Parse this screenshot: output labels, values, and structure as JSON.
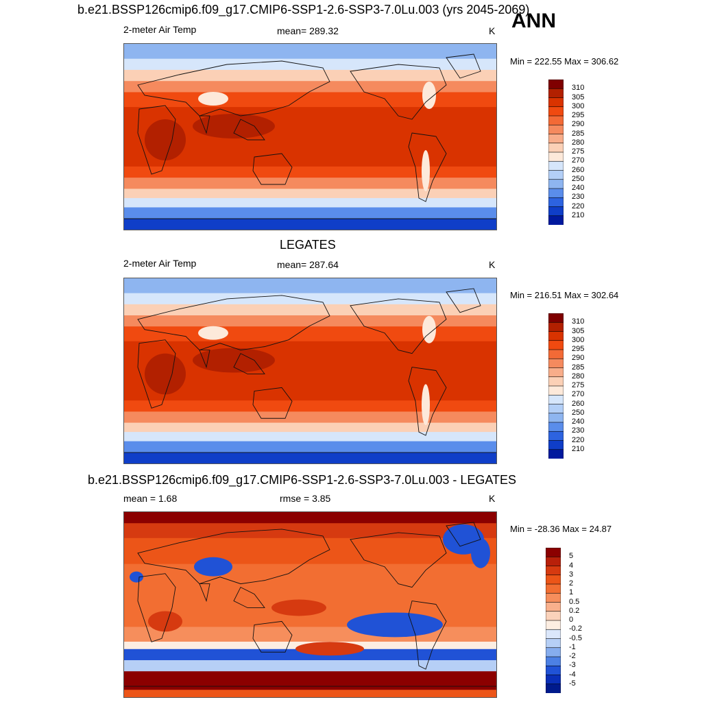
{
  "season": "ANN",
  "panels": [
    {
      "title": "b.e21.BSSP126cmip6.f09_g17.CMIP6-SSP1-2.6-SSP3-7.0Lu.003 (yrs 2045-2069)",
      "left_label": "2-meter Air Temp",
      "center_label": "mean= 289.32",
      "units": "K",
      "minmax": "Min = 222.55 Max = 306.62",
      "colorbar": {
        "labels": [
          "310",
          "305",
          "300",
          "295",
          "290",
          "285",
          "280",
          "275",
          "270",
          "260",
          "250",
          "240",
          "230",
          "220",
          "210"
        ],
        "colors": [
          "#7f0000",
          "#b22000",
          "#d93300",
          "#f04a10",
          "#f36a36",
          "#f58a5e",
          "#f8ad8a",
          "#fbd0b6",
          "#fde9da",
          "#d6e6fb",
          "#b3cff7",
          "#8eb5f0",
          "#5a8deb",
          "#2d63e0",
          "#0f3ec8",
          "#00199e"
        ]
      },
      "type": "clim"
    },
    {
      "title": "LEGATES",
      "left_label": "2-meter Air Temp",
      "center_label": "mean= 287.64",
      "units": "K",
      "minmax": "Min = 216.51 Max = 302.64",
      "colorbar": {
        "labels": [
          "310",
          "305",
          "300",
          "295",
          "290",
          "285",
          "280",
          "275",
          "270",
          "260",
          "250",
          "240",
          "230",
          "220",
          "210"
        ],
        "colors": [
          "#7f0000",
          "#b22000",
          "#d93300",
          "#f04a10",
          "#f36a36",
          "#f58a5e",
          "#f8ad8a",
          "#fbd0b6",
          "#fde9da",
          "#d6e6fb",
          "#b3cff7",
          "#8eb5f0",
          "#5a8deb",
          "#2d63e0",
          "#0f3ec8",
          "#00199e"
        ]
      },
      "type": "clim2"
    },
    {
      "title": "b.e21.BSSP126cmip6.f09_g17.CMIP6-SSP1-2.6-SSP3-7.0Lu.003 - LEGATES",
      "left_label": "mean =   1.68",
      "center_label": "rmse =   3.85",
      "units": "K",
      "minmax": "Min = -28.36 Max =  24.87",
      "colorbar": {
        "labels": [
          "5",
          "4",
          "3",
          "2",
          "1",
          "0.5",
          "0.2",
          "0",
          "-0.2",
          "-0.5",
          "-1",
          "-2",
          "-3",
          "-4",
          "-5"
        ],
        "colors": [
          "#8b0000",
          "#b8200a",
          "#d63a10",
          "#ec5518",
          "#f26e32",
          "#f68e5c",
          "#f9b08c",
          "#fbd2ba",
          "#fdeee2",
          "#dbe7fb",
          "#b6cff6",
          "#86adee",
          "#4c80e4",
          "#2052d6",
          "#0a2fb8",
          "#001a8c"
        ]
      },
      "type": "diff"
    }
  ]
}
